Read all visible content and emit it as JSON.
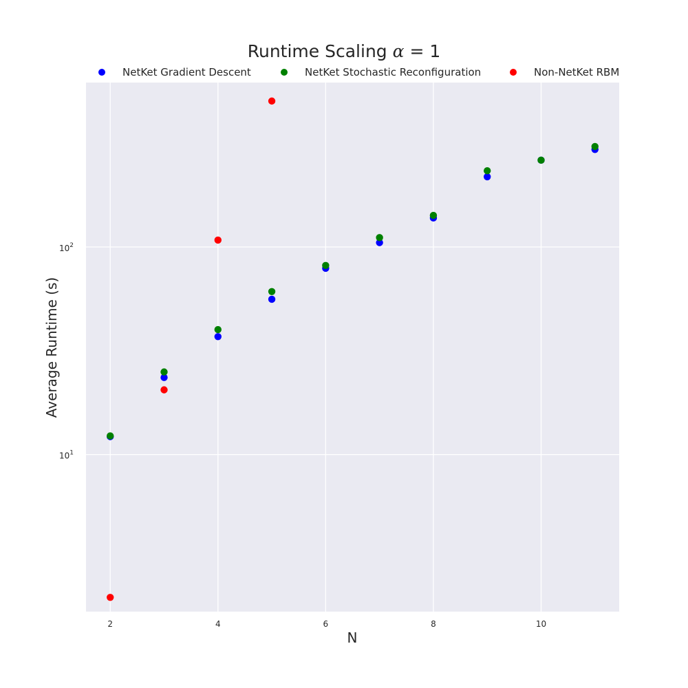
{
  "chart_data": {
    "type": "scatter",
    "title_prefix": "Runtime Scaling ",
    "title_symbol": "α",
    "title_suffix": " = 1",
    "xlabel": "N",
    "ylabel": "Average Runtime (s)",
    "xlim": [
      1.55,
      11.45
    ],
    "ylim": [
      1.75,
      620
    ],
    "yscale": "log",
    "xticks": [
      2,
      4,
      6,
      8,
      10
    ],
    "yticks": [
      {
        "value": 10,
        "base": "10",
        "exp": "1"
      },
      {
        "value": 100,
        "base": "10",
        "exp": "2"
      }
    ],
    "grid": true,
    "legend_position": "top",
    "series": [
      {
        "name": "NetKet Gradient Descent",
        "color": "#0000ff",
        "x": [
          2,
          3,
          4,
          5,
          6,
          7,
          8,
          9,
          10,
          11
        ],
        "y": [
          12.2,
          23.5,
          37,
          56,
          79,
          105,
          138,
          218,
          262,
          295
        ]
      },
      {
        "name": "NetKet Stochastic Reconfiguration",
        "color": "#008000",
        "x": [
          2,
          3,
          4,
          5,
          6,
          7,
          8,
          9,
          10,
          11
        ],
        "y": [
          12.3,
          25,
          40,
          61,
          81.5,
          111,
          142,
          233,
          262,
          305
        ]
      },
      {
        "name": "Non-NetKet RBM",
        "color": "#ff0000",
        "x": [
          2,
          3,
          4,
          5
        ],
        "y": [
          2.05,
          20.5,
          108,
          505
        ]
      }
    ]
  }
}
